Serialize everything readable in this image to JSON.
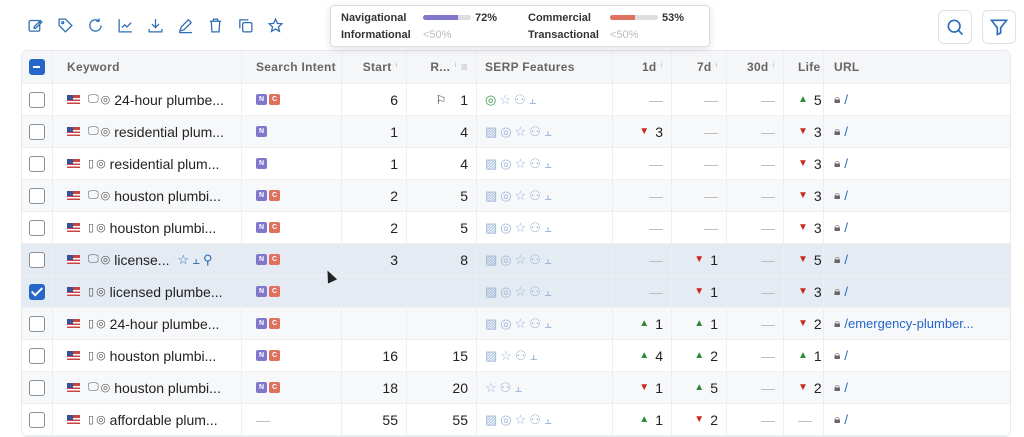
{
  "toolbar": {
    "icons": [
      "edit-icon",
      "tag-icon",
      "refresh-icon",
      "chart-icon",
      "download-icon",
      "pencil-icon",
      "trash-icon",
      "copy-icon",
      "star-icon"
    ]
  },
  "actions": {
    "search": "search-icon",
    "filter": "filter-icon"
  },
  "columns": [
    "Keyword",
    "Search Intent",
    "Start",
    "R...",
    "SERP Features",
    "1d",
    "7d",
    "30d",
    "Life",
    "URL"
  ],
  "colors": {
    "accent": "#2566c8",
    "navigational": "#8077cc",
    "commercial": "#e07060",
    "up": "#2a8a3a",
    "down": "#c8281f"
  },
  "rows": [
    {
      "checked": false,
      "device": "desktop",
      "keyword": "24-hour plumbe...",
      "intent": [
        "N",
        "C"
      ],
      "start": "6",
      "rank": "1",
      "rank_flag": true,
      "serp": [
        "pin-green",
        "star",
        "people",
        "chart"
      ],
      "d1": null,
      "d7": null,
      "d30": null,
      "life": {
        "dir": "up",
        "v": "5"
      },
      "url": "/"
    },
    {
      "checked": false,
      "device": "desktop",
      "keyword": "residential plum...",
      "intent": [
        "N"
      ],
      "start": "1",
      "rank": "4",
      "serp": [
        "image",
        "pin",
        "star",
        "people",
        "chart"
      ],
      "d1": {
        "dir": "down",
        "v": "3"
      },
      "d7": null,
      "d30": null,
      "life": {
        "dir": "down",
        "v": "3"
      },
      "url": "/"
    },
    {
      "checked": false,
      "device": "mobile",
      "keyword": "residential plum...",
      "intent": [
        "N"
      ],
      "start": "1",
      "rank": "4",
      "serp": [
        "image",
        "pin",
        "star",
        "people",
        "chart"
      ],
      "d1": null,
      "d7": null,
      "d30": null,
      "life": {
        "dir": "down",
        "v": "3"
      },
      "url": "/"
    },
    {
      "checked": false,
      "device": "desktop",
      "keyword": "houston plumbi...",
      "intent": [
        "N",
        "C"
      ],
      "start": "2",
      "rank": "5",
      "serp": [
        "image",
        "pin",
        "star",
        "people",
        "chart"
      ],
      "d1": null,
      "d7": null,
      "d30": null,
      "life": {
        "dir": "down",
        "v": "3"
      },
      "url": "/"
    },
    {
      "checked": false,
      "device": "mobile",
      "keyword": "houston plumbi...",
      "intent": [
        "N",
        "C"
      ],
      "start": "2",
      "rank": "5",
      "serp": [
        "image",
        "pin",
        "star",
        "people",
        "chart"
      ],
      "d1": null,
      "d7": null,
      "d30": null,
      "life": {
        "dir": "down",
        "v": "3"
      },
      "url": "/"
    },
    {
      "checked": false,
      "hover": true,
      "device": "desktop",
      "keyword": "license...",
      "intent": [
        "N",
        "C"
      ],
      "start": "3",
      "rank": "8",
      "serp": [
        "image",
        "pin",
        "star",
        "people",
        "chart"
      ],
      "d1": null,
      "d7": {
        "dir": "down",
        "v": "1"
      },
      "d30": null,
      "life": {
        "dir": "down",
        "v": "5"
      },
      "url": "/"
    },
    {
      "checked": true,
      "device": "mobile",
      "keyword": "licensed plumbe...",
      "intent": [
        "N",
        "C"
      ],
      "start": "",
      "rank": "",
      "serp": [
        "image",
        "pin",
        "star",
        "people",
        "chart"
      ],
      "d1": null,
      "d7": {
        "dir": "down",
        "v": "1"
      },
      "d30": null,
      "life": {
        "dir": "down",
        "v": "3"
      },
      "url": "/"
    },
    {
      "checked": false,
      "device": "mobile",
      "keyword": "24-hour plumbe...",
      "intent": [
        "N",
        "C"
      ],
      "start": "",
      "rank": "",
      "serp": [
        "image",
        "pin",
        "star",
        "people",
        "chart"
      ],
      "d1": {
        "dir": "up",
        "v": "1"
      },
      "d7": {
        "dir": "up",
        "v": "1"
      },
      "d30": null,
      "life": {
        "dir": "down",
        "v": "2"
      },
      "url": "/emergency-plumber..."
    },
    {
      "checked": false,
      "device": "mobile",
      "keyword": "houston plumbi...",
      "intent": [
        "N",
        "C"
      ],
      "start": "16",
      "rank": "15",
      "serp": [
        "image",
        "star",
        "people",
        "chart"
      ],
      "d1": {
        "dir": "up",
        "v": "4"
      },
      "d7": {
        "dir": "up",
        "v": "2"
      },
      "d30": null,
      "life": {
        "dir": "up",
        "v": "1"
      },
      "url": "/"
    },
    {
      "checked": false,
      "device": "desktop",
      "keyword": "houston plumbi...",
      "intent": [
        "N",
        "C"
      ],
      "start": "18",
      "rank": "20",
      "serp": [
        "star",
        "people",
        "chart"
      ],
      "d1": {
        "dir": "down",
        "v": "1"
      },
      "d7": {
        "dir": "up",
        "v": "5"
      },
      "d30": null,
      "life": {
        "dir": "down",
        "v": "2"
      },
      "url": "/"
    },
    {
      "checked": false,
      "device": "mobile",
      "keyword": "affordable plum...",
      "intent": [],
      "start": "55",
      "rank": "55",
      "serp": [
        "image",
        "pin",
        "star",
        "people",
        "chart"
      ],
      "d1": {
        "dir": "up",
        "v": "1"
      },
      "d7": {
        "dir": "down",
        "v": "2"
      },
      "d30": null,
      "life": null,
      "url": "/"
    }
  ],
  "tooltip": [
    {
      "label": "Navigational",
      "value": "72%",
      "pct": 72,
      "color": "#8077cc"
    },
    {
      "label": "Commercial",
      "value": "53%",
      "pct": 53,
      "color": "#e07060"
    },
    {
      "label": "Informational",
      "value": "<50%"
    },
    {
      "label": "Transactional",
      "value": "<50%"
    }
  ]
}
